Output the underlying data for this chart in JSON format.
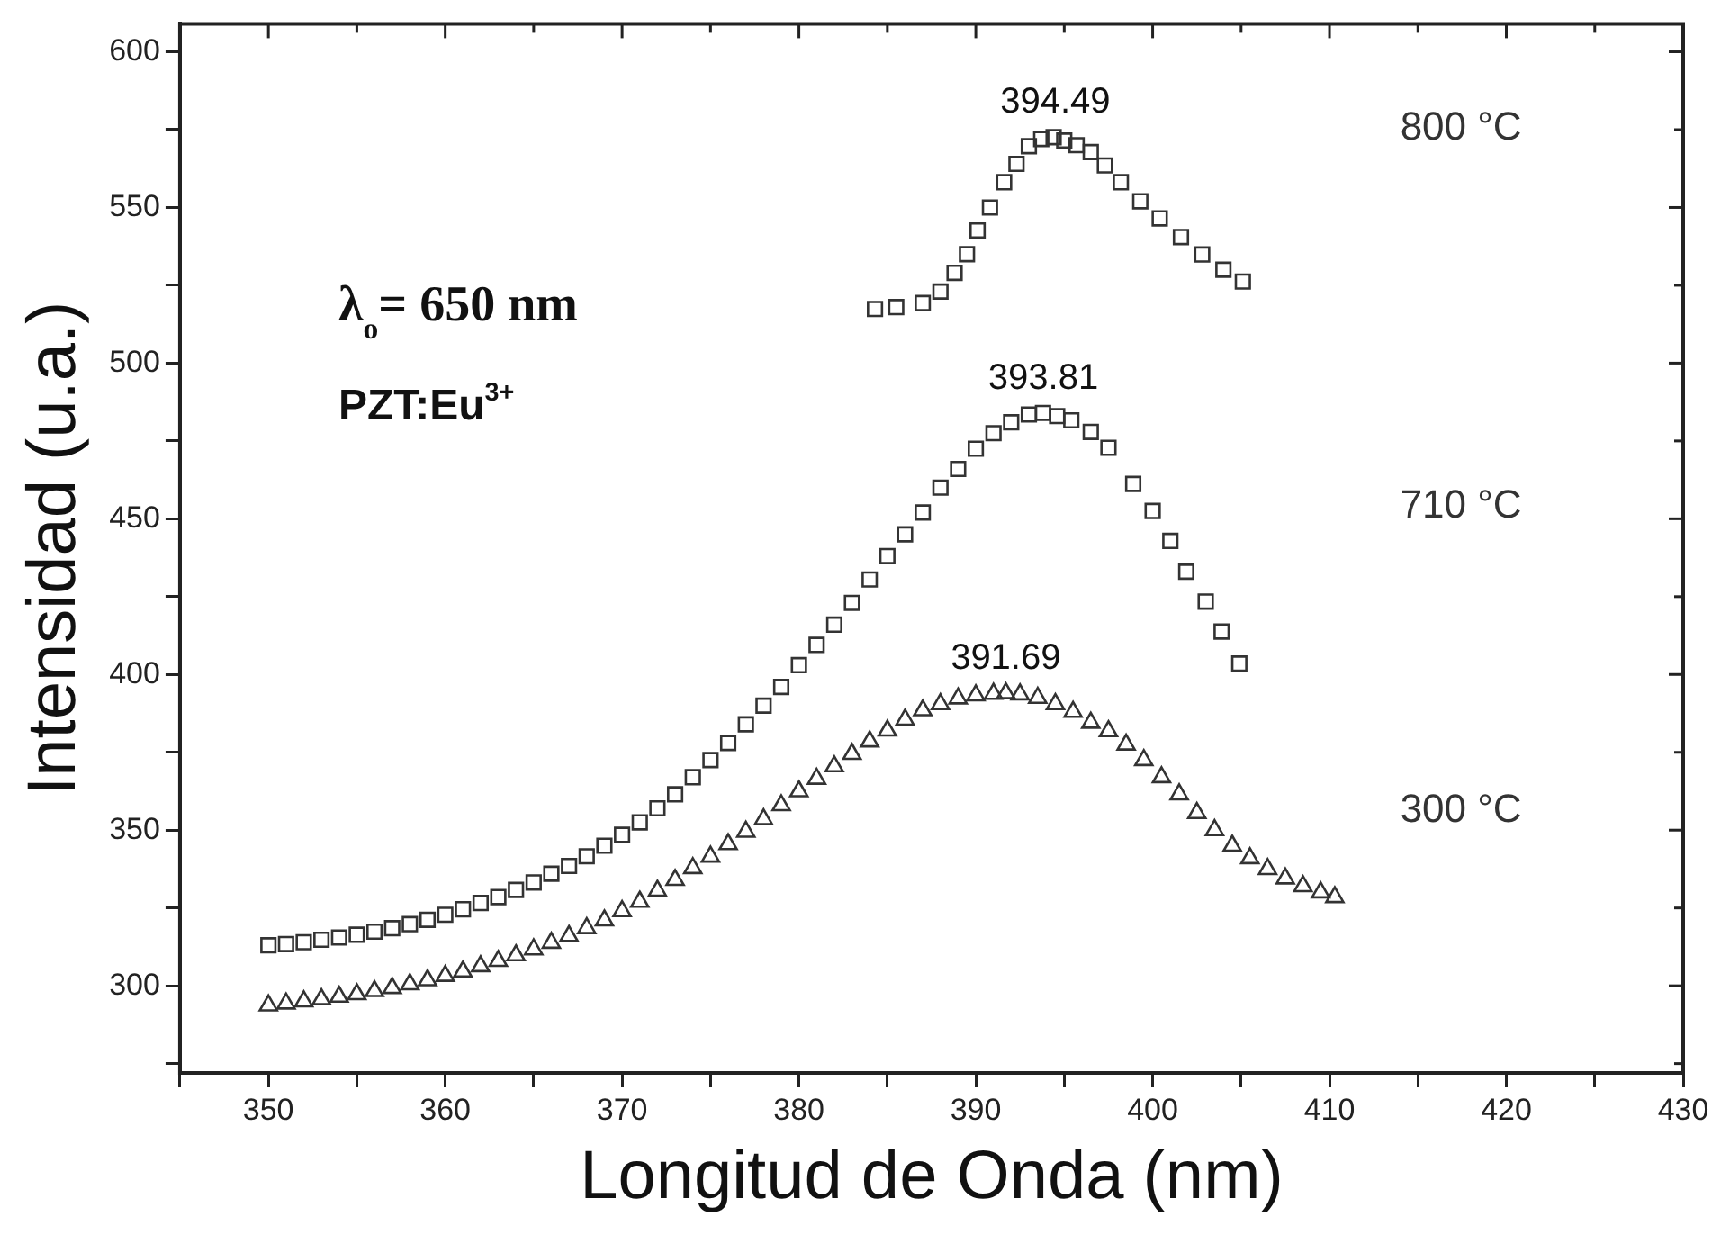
{
  "chart_data": {
    "type": "scatter",
    "xlabel": "Longitud de Onda (nm)",
    "ylabel": "Intensidad (u.a.)",
    "xlim": [
      345,
      430
    ],
    "ylim": [
      272,
      609
    ],
    "xticks": [
      {
        "value": 345,
        "label": null
      },
      350,
      {
        "value": 355,
        "label": null
      },
      360,
      {
        "value": 365,
        "label": null
      },
      370,
      {
        "value": 375,
        "label": null
      },
      380,
      {
        "value": 385,
        "label": null
      },
      390,
      {
        "value": 395,
        "label": null
      },
      400,
      {
        "value": 405,
        "label": null
      },
      410,
      {
        "value": 415,
        "label": null
      },
      420,
      {
        "value": 425,
        "label": null
      },
      430
    ],
    "yticks": [
      {
        "value": 275,
        "label": null
      },
      300,
      {
        "value": 325,
        "label": null
      },
      350,
      {
        "value": 375,
        "label": null
      },
      400,
      {
        "value": 425,
        "label": null
      },
      450,
      {
        "value": 475,
        "label": null
      },
      500,
      {
        "value": 525,
        "label": null
      },
      550,
      {
        "value": 575,
        "label": null
      },
      600
    ],
    "grid": false,
    "legend": false,
    "series": [
      {
        "name": "800 °C",
        "color": "#333333",
        "marker": "square",
        "x": [
          384.3,
          385.5,
          387,
          388,
          388.8,
          389.5,
          390.1,
          390.8,
          391.6,
          392.3,
          393,
          393.7,
          394.4,
          395,
          395.7,
          396.5,
          397.3,
          398.2,
          399.3,
          400.4,
          401.6,
          402.8,
          404,
          405.1
        ],
        "values": [
          517.4,
          518,
          519.3,
          523,
          529,
          535,
          542.6,
          550,
          558.1,
          564,
          569.7,
          572,
          572.6,
          571.5,
          570,
          567.8,
          563.5,
          558.1,
          552,
          546.5,
          540.5,
          534.9,
          530,
          526.2
        ]
      },
      {
        "name": "710 °C",
        "color": "#333333",
        "marker": "square",
        "x": [
          350,
          351,
          352,
          353,
          354,
          355,
          356,
          357,
          358,
          359,
          360,
          361,
          362,
          363,
          364,
          365,
          366,
          367,
          368,
          369,
          370,
          371,
          372,
          373,
          374,
          375,
          376,
          377,
          378,
          379,
          380,
          381,
          382,
          383,
          384,
          385,
          386,
          387,
          388,
          389,
          390,
          391,
          392,
          393,
          393.8,
          394.6,
          395.4,
          396.5,
          397.5,
          398.9,
          400,
          401,
          401.9,
          403,
          403.9,
          404.9
        ],
        "values": [
          313,
          313.4,
          314,
          314.8,
          315.5,
          316.4,
          317.4,
          318.5,
          319.8,
          321.2,
          322.8,
          324.6,
          326.6,
          328.5,
          330.8,
          333.2,
          336,
          338.5,
          341.6,
          345,
          348.5,
          352.5,
          357,
          361.5,
          367,
          372.5,
          378,
          384,
          390,
          396,
          403,
          409.5,
          416,
          423,
          430.5,
          438,
          445,
          452,
          460,
          466,
          472.5,
          477.5,
          481,
          483.5,
          484,
          483,
          481.6,
          477.9,
          472.8,
          461.2,
          452.5,
          442.9,
          433,
          423.4,
          413.8,
          403.5
        ]
      },
      {
        "name": "300 °C",
        "color": "#333333",
        "marker": "triangle",
        "x": [
          350,
          351,
          352,
          353,
          354,
          355,
          356,
          357,
          358,
          359,
          360,
          361,
          362,
          363,
          364,
          365,
          366,
          367,
          368,
          369,
          370,
          371,
          372,
          373,
          374,
          375,
          376,
          377,
          378,
          379,
          380,
          381,
          382,
          383,
          384,
          385,
          386,
          387,
          388,
          389,
          390,
          391,
          391.7,
          392.5,
          393.5,
          394.5,
          395.5,
          396.5,
          397.5,
          398.5,
          399.5,
          400.5,
          401.5,
          402.5,
          403.5,
          404.5,
          405.5,
          406.5,
          407.5,
          408.5,
          409.5,
          410.3
        ],
        "values": [
          293.7,
          294.3,
          295,
          295.7,
          296.5,
          297.3,
          298.3,
          299.3,
          300.5,
          301.8,
          303.2,
          304.6,
          306.3,
          308,
          309.8,
          311.7,
          313.8,
          316,
          318.5,
          321,
          324,
          327,
          330.5,
          334,
          337.8,
          341.5,
          345.5,
          349.5,
          353.5,
          358,
          362.5,
          366.5,
          370.5,
          374.5,
          378.5,
          382,
          385.5,
          388.5,
          390.5,
          392.3,
          393.3,
          393.8,
          394,
          393.6,
          392.5,
          390.5,
          388,
          384.5,
          381.8,
          377.5,
          372.5,
          367,
          361.5,
          355.5,
          350,
          345,
          341,
          337.5,
          334.5,
          332,
          330,
          328.5
        ]
      }
    ],
    "annotations": [
      {
        "text": "394.49",
        "x": 394.49,
        "y": 572.6
      },
      {
        "text": "393.81",
        "x": 393.81,
        "y": 484
      },
      {
        "text": "391.69",
        "x": 391.69,
        "y": 394
      },
      "λ$_{o}$= 650 nm",
      "PZT:Eu$^{3+}$"
    ]
  }
}
